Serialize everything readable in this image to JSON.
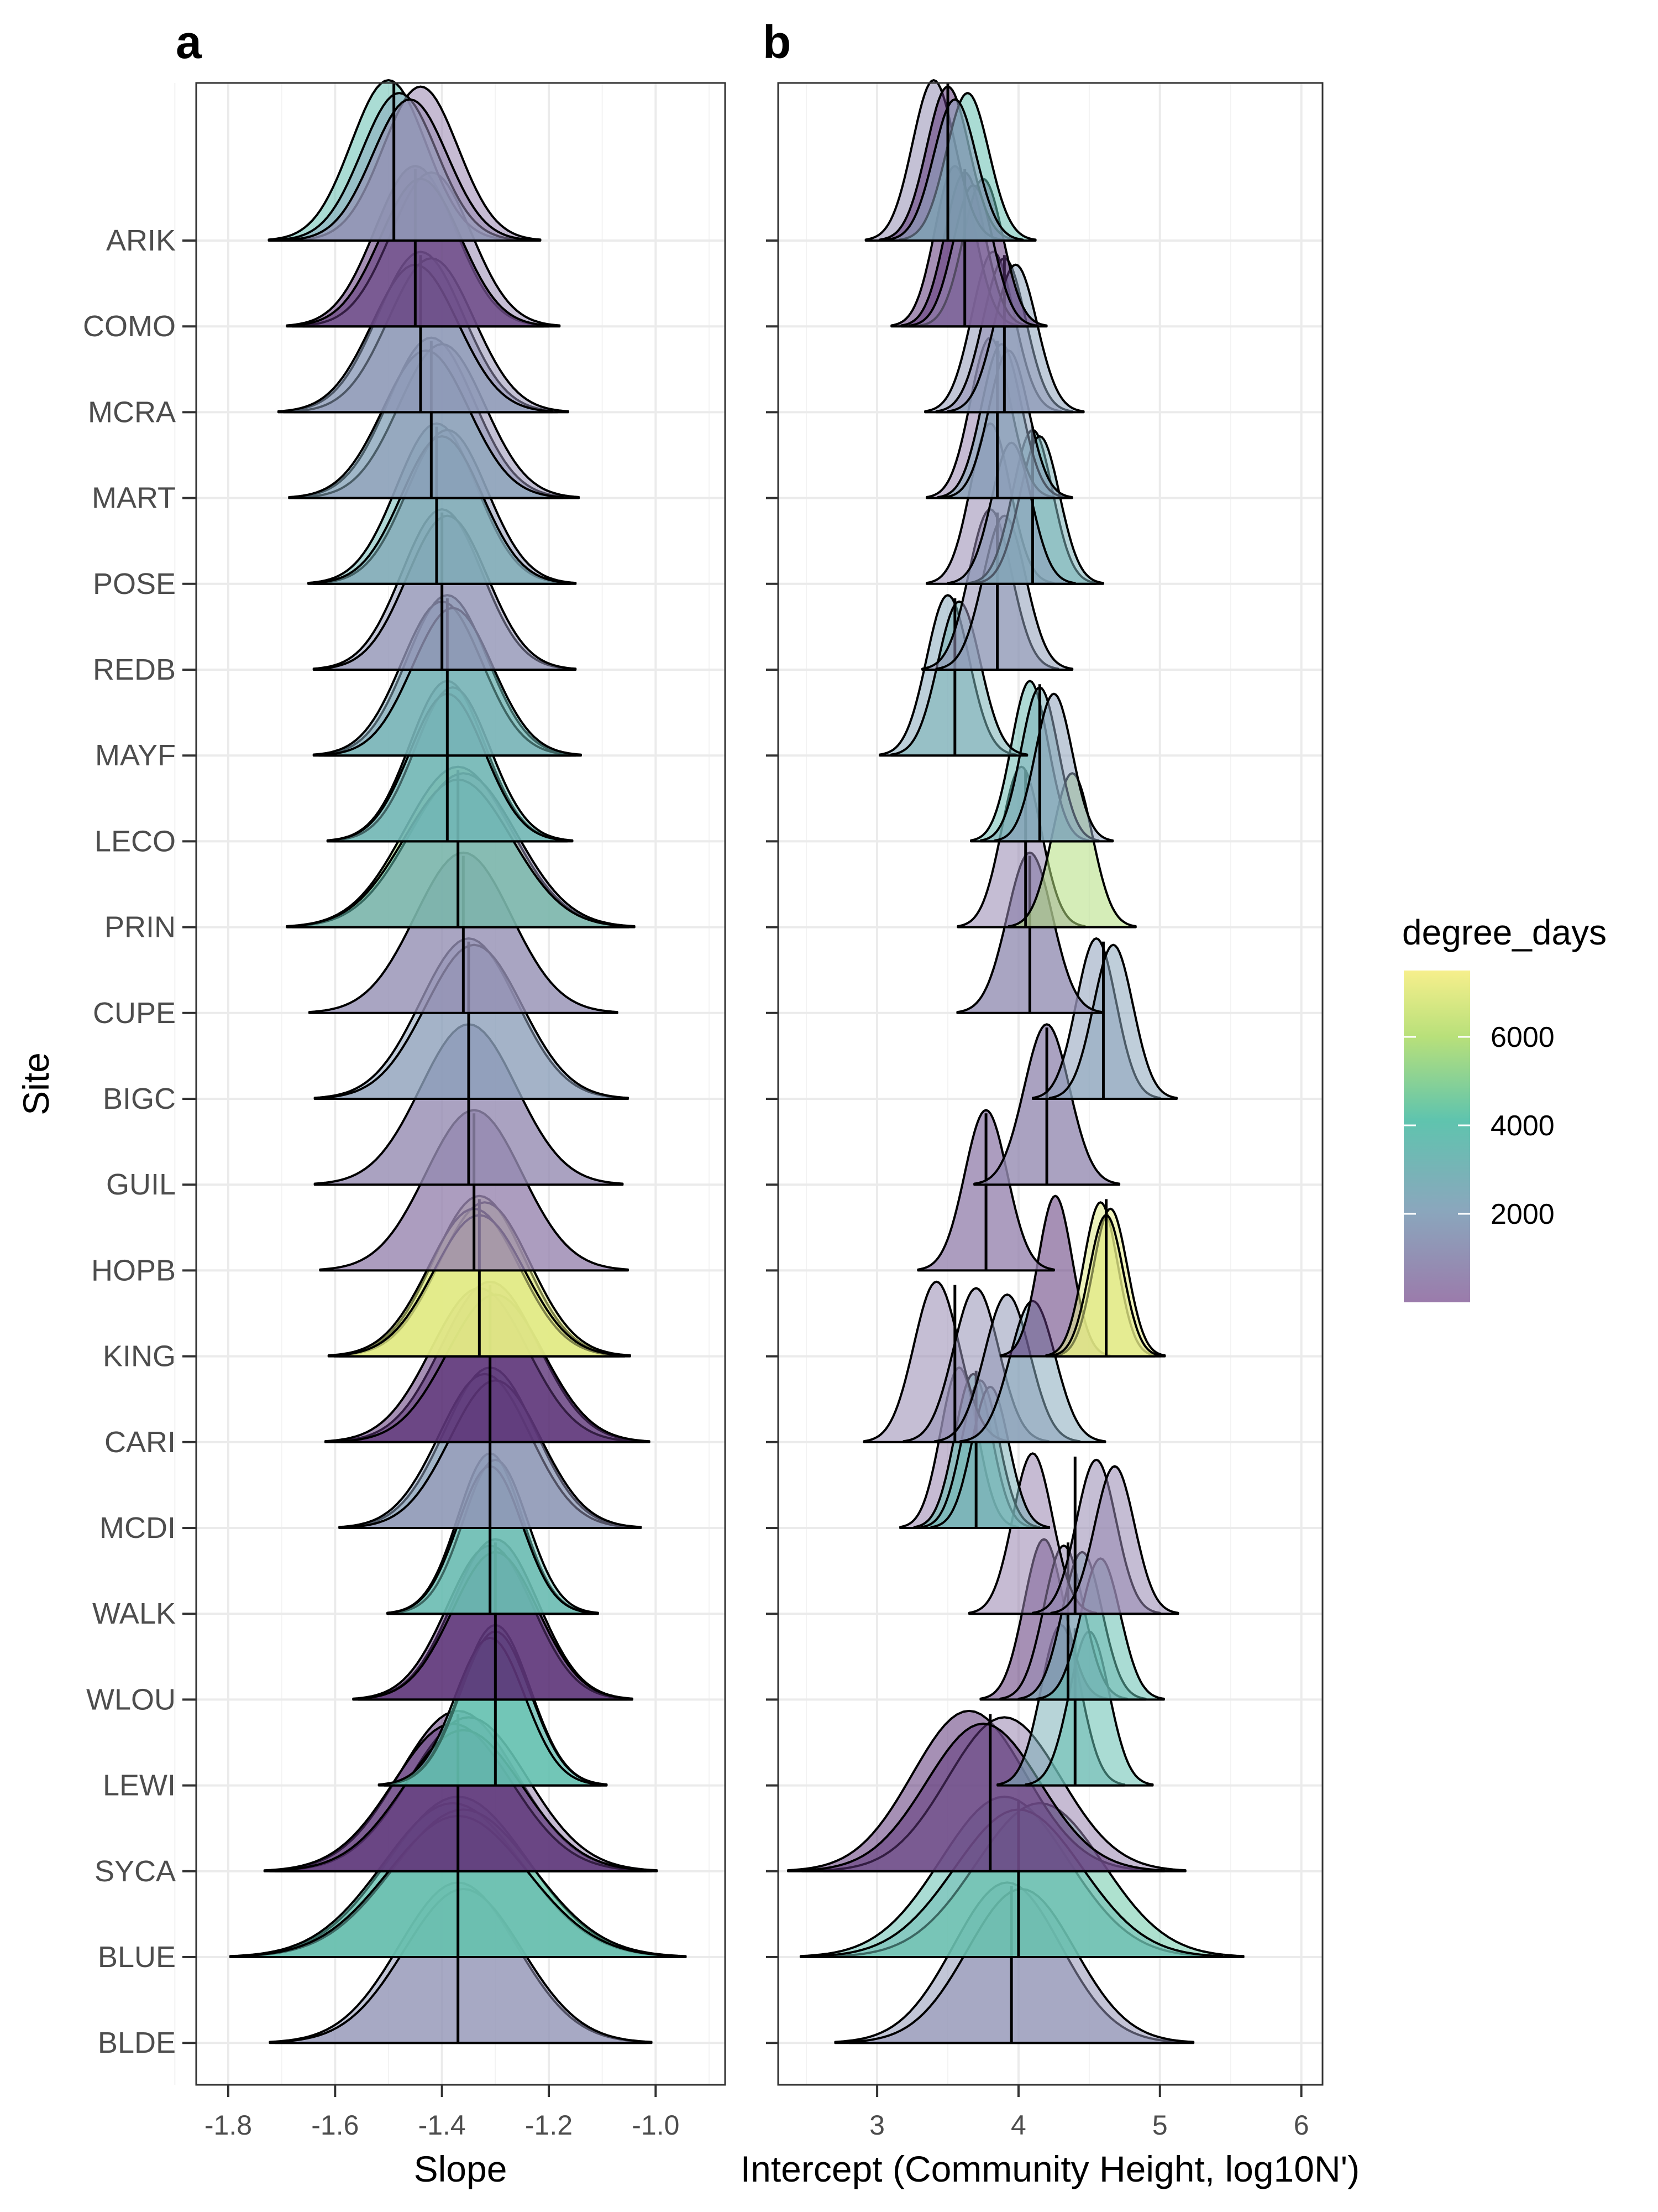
{
  "chart_data": [
    {
      "panel": "a",
      "type": "ridgeline",
      "xlabel": "Slope",
      "ylabel": "Site",
      "xlim": [
        -1.86,
        -0.87
      ],
      "xticks": [
        "-1.8",
        "-1.6",
        "-1.4",
        "-1.2",
        "-1.0"
      ],
      "xtick_values": [
        -1.8,
        -1.6,
        -1.4,
        -1.2,
        -1.0
      ],
      "grid": true,
      "sites": [
        "ARIK",
        "COMO",
        "MCRA",
        "MART",
        "POSE",
        "REDB",
        "MAYF",
        "LECO",
        "PRIN",
        "CUPE",
        "BIGC",
        "GUIL",
        "HOPB",
        "KING",
        "CARI",
        "MCDI",
        "WALK",
        "WLOU",
        "LEWI",
        "SYCA",
        "BLUE",
        "BLDE"
      ],
      "series": [
        {
          "site": "ARIK",
          "degree_days": 3500,
          "median": -1.49,
          "sd": 0.07,
          "samples": [
            {
              "mu": -1.5,
              "dd": 3500
            },
            {
              "mu": -1.44,
              "dd": 400
            },
            {
              "mu": -1.48,
              "dd": 2000
            },
            {
              "mu": -1.46,
              "dd": 600
            }
          ]
        },
        {
          "site": "COMO",
          "degree_days": 100,
          "median": -1.45,
          "sd": 0.075,
          "samples": [
            {
              "mu": -1.45,
              "dd": 100
            },
            {
              "mu": -1.42,
              "dd": 500
            },
            {
              "mu": -1.44,
              "dd": 300
            }
          ]
        },
        {
          "site": "MCRA",
          "degree_days": 1200,
          "median": -1.44,
          "sd": 0.08,
          "samples": [
            {
              "mu": -1.44,
              "dd": 1200
            },
            {
              "mu": -1.42,
              "dd": 900
            },
            {
              "mu": -1.45,
              "dd": 1500
            }
          ]
        },
        {
          "site": "MART",
          "degree_days": 1500,
          "median": -1.42,
          "sd": 0.08,
          "samples": [
            {
              "mu": -1.42,
              "dd": 1500
            },
            {
              "mu": -1.4,
              "dd": 800
            },
            {
              "mu": -1.43,
              "dd": 2000
            }
          ]
        },
        {
          "site": "POSE",
          "degree_days": 3000,
          "median": -1.41,
          "sd": 0.075,
          "samples": [
            {
              "mu": -1.41,
              "dd": 3000
            },
            {
              "mu": -1.39,
              "dd": 1200
            },
            {
              "mu": -1.4,
              "dd": 2500
            }
          ]
        },
        {
          "site": "REDB",
          "degree_days": 1200,
          "median": -1.4,
          "sd": 0.075,
          "samples": [
            {
              "mu": -1.4,
              "dd": 1200
            },
            {
              "mu": -1.39,
              "dd": 1000
            }
          ]
        },
        {
          "site": "MAYF",
          "degree_days": 2500,
          "median": -1.39,
          "sd": 0.075,
          "samples": [
            {
              "mu": -1.39,
              "dd": 2500
            },
            {
              "mu": -1.4,
              "dd": 2000
            },
            {
              "mu": -1.38,
              "dd": 3000
            }
          ]
        },
        {
          "site": "LECO",
          "degree_days": 3000,
          "median": -1.39,
          "sd": 0.07,
          "samples": [
            {
              "mu": -1.39,
              "dd": 3000
            },
            {
              "mu": -1.38,
              "dd": 3200
            },
            {
              "mu": -1.39,
              "dd": 2800
            }
          ]
        },
        {
          "site": "PRIN",
          "degree_days": 5500,
          "median": -1.37,
          "sd": 0.1,
          "samples": [
            {
              "mu": -1.37,
              "dd": 5500
            },
            {
              "mu": -1.36,
              "dd": 800
            },
            {
              "mu": -1.37,
              "dd": 3500
            }
          ]
        },
        {
          "site": "CUPE",
          "degree_days": 800,
          "median": -1.36,
          "sd": 0.09,
          "samples": [
            {
              "mu": -1.36,
              "dd": 800
            }
          ]
        },
        {
          "site": "BIGC",
          "degree_days": 1700,
          "median": -1.35,
          "sd": 0.09,
          "samples": [
            {
              "mu": -1.35,
              "dd": 1700
            },
            {
              "mu": -1.34,
              "dd": 1500
            }
          ]
        },
        {
          "site": "GUIL",
          "degree_days": 700,
          "median": -1.35,
          "sd": 0.09,
          "samples": [
            {
              "mu": -1.35,
              "dd": 700
            }
          ]
        },
        {
          "site": "HOPB",
          "degree_days": 400,
          "median": -1.34,
          "sd": 0.09,
          "samples": [
            {
              "mu": -1.34,
              "dd": 400
            }
          ]
        },
        {
          "site": "KING",
          "degree_days": 6800,
          "median": -1.33,
          "sd": 0.085,
          "samples": [
            {
              "mu": -1.33,
              "dd": 6800
            },
            {
              "mu": -1.32,
              "dd": 6900
            },
            {
              "mu": -1.34,
              "dd": 6700
            },
            {
              "mu": -1.33,
              "dd": 7000
            }
          ]
        },
        {
          "site": "CARI",
          "degree_days": 200,
          "median": -1.31,
          "sd": 0.09,
          "samples": [
            {
              "mu": -1.31,
              "dd": 200
            },
            {
              "mu": -1.33,
              "dd": 300
            },
            {
              "mu": -1.3,
              "dd": 100
            }
          ]
        },
        {
          "site": "MCDI",
          "degree_days": 2000,
          "median": -1.31,
          "sd": 0.085,
          "samples": [
            {
              "mu": -1.31,
              "dd": 2000
            },
            {
              "mu": -1.32,
              "dd": 1500
            },
            {
              "mu": -1.3,
              "dd": 1000
            }
          ]
        },
        {
          "site": "WALK",
          "degree_days": 3500,
          "median": -1.31,
          "sd": 0.06,
          "samples": [
            {
              "mu": -1.31,
              "dd": 3500
            },
            {
              "mu": -1.3,
              "dd": 3300
            },
            {
              "mu": -1.31,
              "dd": 3200
            }
          ]
        },
        {
          "site": "WLOU",
          "degree_days": 200,
          "median": -1.3,
          "sd": 0.08,
          "samples": [
            {
              "mu": -1.3,
              "dd": 200
            },
            {
              "mu": -1.31,
              "dd": 300
            },
            {
              "mu": -1.3,
              "dd": 150
            }
          ]
        },
        {
          "site": "LEWI",
          "degree_days": 3500,
          "median": -1.3,
          "sd": 0.065,
          "samples": [
            {
              "mu": -1.3,
              "dd": 3500
            },
            {
              "mu": -1.3,
              "dd": 3200
            },
            {
              "mu": -1.31,
              "dd": 3700
            }
          ]
        },
        {
          "site": "SYCA",
          "degree_days": 200,
          "median": -1.37,
          "sd": 0.11,
          "samples": [
            {
              "mu": -1.37,
              "dd": 200
            },
            {
              "mu": -1.35,
              "dd": 400
            },
            {
              "mu": -1.38,
              "dd": 100
            },
            {
              "mu": -1.36,
              "dd": 300
            }
          ]
        },
        {
          "site": "BLUE",
          "degree_days": 3800,
          "median": -1.37,
          "sd": 0.13,
          "samples": [
            {
              "mu": -1.37,
              "dd": 3800
            },
            {
              "mu": -1.38,
              "dd": 3500
            },
            {
              "mu": -1.36,
              "dd": 4000
            },
            {
              "mu": -1.37,
              "dd": 3200
            }
          ]
        },
        {
          "site": "BLDE",
          "degree_days": 1200,
          "median": -1.37,
          "sd": 0.11,
          "samples": [
            {
              "mu": -1.37,
              "dd": 1200
            },
            {
              "mu": -1.36,
              "dd": 1000
            }
          ]
        }
      ]
    },
    {
      "panel": "b",
      "type": "ridgeline",
      "xlabel": "Intercept (Community Height, log10N')",
      "xlim": [
        2.3,
        6.15
      ],
      "xticks": [
        "3",
        "4",
        "5",
        "6"
      ],
      "xtick_values": [
        3,
        4,
        5,
        6
      ],
      "grid": true,
      "series": [
        {
          "site": "ARIK",
          "degree_days": 800,
          "median": 3.5,
          "sd": 0.15,
          "samples": [
            {
              "mu": 3.4,
              "dd": 800
            },
            {
              "mu": 3.5,
              "dd": 300
            },
            {
              "mu": 3.64,
              "dd": 3500
            },
            {
              "mu": 3.55,
              "dd": 1500
            }
          ]
        },
        {
          "site": "COMO",
          "degree_days": 150,
          "median": 3.62,
          "sd": 0.14,
          "samples": [
            {
              "mu": 3.55,
              "dd": 150
            },
            {
              "mu": 3.62,
              "dd": 300
            },
            {
              "mu": 3.75,
              "dd": 200
            },
            {
              "mu": 3.68,
              "dd": 500
            }
          ]
        },
        {
          "site": "MCRA",
          "degree_days": 1200,
          "median": 3.9,
          "sd": 0.15,
          "samples": [
            {
              "mu": 3.82,
              "dd": 1200
            },
            {
              "mu": 3.9,
              "dd": 900
            },
            {
              "mu": 3.98,
              "dd": 1700
            }
          ]
        },
        {
          "site": "MART",
          "degree_days": 1500,
          "median": 3.85,
          "sd": 0.14,
          "samples": [
            {
              "mu": 3.8,
              "dd": 400
            },
            {
              "mu": 3.88,
              "dd": 2000
            },
            {
              "mu": 3.93,
              "dd": 1600
            }
          ]
        },
        {
          "site": "POSE",
          "degree_days": 3000,
          "median": 4.1,
          "sd": 0.14,
          "samples": [
            {
              "mu": 3.8,
              "dd": 600
            },
            {
              "mu": 4.1,
              "dd": 3000
            },
            {
              "mu": 4.15,
              "dd": 2500
            },
            {
              "mu": 3.95,
              "dd": 1500
            }
          ]
        },
        {
          "site": "REDB",
          "degree_days": 1200,
          "median": 3.85,
          "sd": 0.15,
          "samples": [
            {
              "mu": 3.8,
              "dd": 900
            },
            {
              "mu": 3.9,
              "dd": 1400
            }
          ]
        },
        {
          "site": "MAYF",
          "degree_days": 2500,
          "median": 3.55,
          "sd": 0.15,
          "samples": [
            {
              "mu": 3.5,
              "dd": 2000
            },
            {
              "mu": 3.58,
              "dd": 2600
            }
          ]
        },
        {
          "site": "LECO",
          "degree_days": 3000,
          "median": 4.15,
          "sd": 0.13,
          "samples": [
            {
              "mu": 4.08,
              "dd": 3200
            },
            {
              "mu": 4.15,
              "dd": 2500
            },
            {
              "mu": 4.25,
              "dd": 1600
            }
          ]
        },
        {
          "site": "PRIN",
          "degree_days": 5500,
          "median": 4.05,
          "sd": 0.14,
          "samples": [
            {
              "mu": 4.02,
              "dd": 500
            },
            {
              "mu": 4.38,
              "dd": 5500
            }
          ]
        },
        {
          "site": "CUPE",
          "degree_days": 800,
          "median": 4.08,
          "sd": 0.16,
          "samples": [
            {
              "mu": 4.08,
              "dd": 800
            }
          ]
        },
        {
          "site": "BIGC",
          "degree_days": 1700,
          "median": 4.6,
          "sd": 0.14,
          "samples": [
            {
              "mu": 4.55,
              "dd": 1500
            },
            {
              "mu": 4.67,
              "dd": 1800
            }
          ]
        },
        {
          "site": "GUIL",
          "degree_days": 700,
          "median": 4.2,
          "sd": 0.16,
          "samples": [
            {
              "mu": 4.2,
              "dd": 700
            }
          ]
        },
        {
          "site": "HOPB",
          "degree_days": 400,
          "median": 3.77,
          "sd": 0.15,
          "samples": [
            {
              "mu": 3.77,
              "dd": 400
            }
          ]
        },
        {
          "site": "KING",
          "degree_days": 6800,
          "median": 4.62,
          "sd": 0.12,
          "samples": [
            {
              "mu": 4.26,
              "dd": 300
            },
            {
              "mu": 4.58,
              "dd": 6800
            },
            {
              "mu": 4.65,
              "dd": 7000
            },
            {
              "mu": 4.62,
              "dd": 6900
            }
          ]
        },
        {
          "site": "CARI",
          "degree_days": 200,
          "median": 3.55,
          "sd": 0.16,
          "samples": [
            {
              "mu": 3.42,
              "dd": 600
            },
            {
              "mu": 3.7,
              "dd": 900
            },
            {
              "mu": 3.92,
              "dd": 1200
            },
            {
              "mu": 4.1,
              "dd": 2000
            }
          ]
        },
        {
          "site": "MCDI",
          "degree_days": 2000,
          "median": 3.7,
          "sd": 0.13,
          "samples": [
            {
              "mu": 3.58,
              "dd": 400
            },
            {
              "mu": 3.68,
              "dd": 3500
            },
            {
              "mu": 3.73,
              "dd": 3000
            },
            {
              "mu": 3.8,
              "dd": 2500
            }
          ]
        },
        {
          "site": "WALK",
          "degree_days": 3500,
          "median": 4.4,
          "sd": 0.14,
          "samples": [
            {
              "mu": 4.1,
              "dd": 400
            },
            {
              "mu": 4.55,
              "dd": 600
            },
            {
              "mu": 4.68,
              "dd": 500
            }
          ]
        },
        {
          "site": "WLOU",
          "degree_days": 200,
          "median": 4.35,
          "sd": 0.14,
          "samples": [
            {
              "mu": 4.18,
              "dd": 300
            },
            {
              "mu": 4.32,
              "dd": 600
            },
            {
              "mu": 4.45,
              "dd": 2500
            },
            {
              "mu": 4.58,
              "dd": 3500
            }
          ]
        },
        {
          "site": "LEWI",
          "degree_days": 3500,
          "median": 4.4,
          "sd": 0.14,
          "samples": [
            {
              "mu": 4.3,
              "dd": 2500
            },
            {
              "mu": 4.5,
              "dd": 3500
            }
          ]
        },
        {
          "site": "SYCA",
          "degree_days": 200,
          "median": 3.8,
          "sd": 0.4,
          "samples": [
            {
              "mu": 3.65,
              "dd": 200
            },
            {
              "mu": 3.9,
              "dd": 400
            },
            {
              "mu": 3.75,
              "dd": 300
            }
          ]
        },
        {
          "site": "BLUE",
          "degree_days": 3800,
          "median": 4.0,
          "sd": 0.45,
          "samples": [
            {
              "mu": 3.9,
              "dd": 3500
            },
            {
              "mu": 4.15,
              "dd": 4000
            },
            {
              "mu": 4.0,
              "dd": 3200
            }
          ]
        },
        {
          "site": "BLDE",
          "degree_days": 1200,
          "median": 3.95,
          "sd": 0.38,
          "samples": [
            {
              "mu": 3.92,
              "dd": 1200
            },
            {
              "mu": 4.02,
              "dd": 1000
            }
          ]
        }
      ]
    }
  ],
  "legend": {
    "title": "degree_days",
    "ticks": [
      "6000",
      "4000",
      "2000"
    ],
    "tick_values": [
      6000,
      4000,
      2000
    ],
    "range": [
      0,
      7500
    ],
    "colors": [
      "#9b7bab",
      "#8aa7bd",
      "#5fc4ae",
      "#b8e07a",
      "#f6ef8c"
    ]
  },
  "panel_labels": {
    "a": "a",
    "b": "b"
  }
}
